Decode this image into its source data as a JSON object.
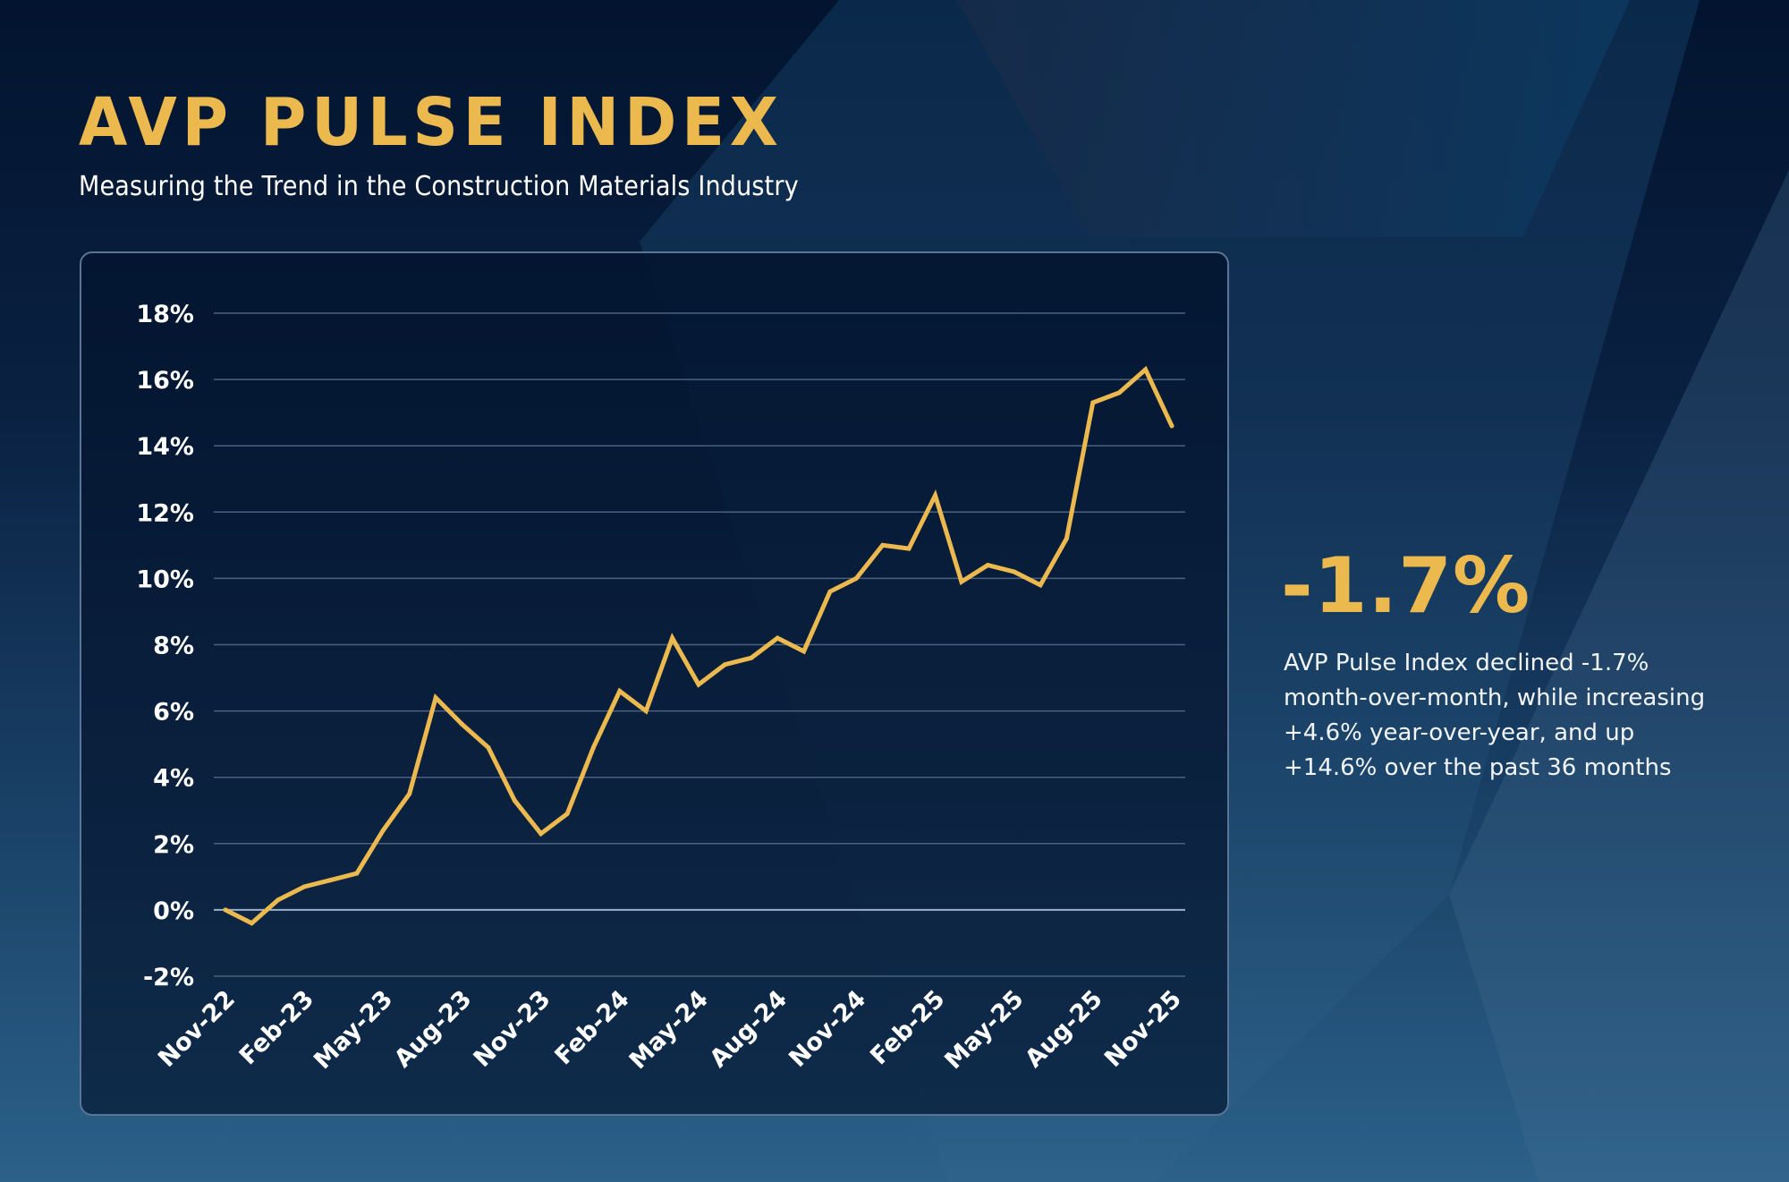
{
  "header": {
    "title": "AVP PULSE INDEX",
    "subtitle": "Measuring the Trend in the Construction Materials Industry"
  },
  "summary": {
    "headline_value": "-1.7%",
    "description_lines": [
      "AVP Pulse Index declined -1.7%",
      "month-over-month, while increasing",
      "+4.6% year-over-year, and up",
      "+14.6% over the past 36 months"
    ]
  },
  "colors": {
    "accent": "#ecb94f",
    "line": "#ecb94f",
    "text": "#ffffff",
    "gridline": "#4a6280",
    "zero_line": "#9fb2c8",
    "card_border": "#5a7596"
  },
  "chart_data": {
    "type": "line",
    "title": "AVP PULSE INDEX",
    "xlabel": "",
    "ylabel": "",
    "ylim": [
      -2,
      18
    ],
    "yticks": [
      -2,
      0,
      2,
      4,
      6,
      8,
      10,
      12,
      14,
      16,
      18
    ],
    "ytick_labels": [
      "-2%",
      "0%",
      "2%",
      "4%",
      "6%",
      "8%",
      "10%",
      "12%",
      "14%",
      "16%",
      "18%"
    ],
    "grid": true,
    "legend": "none",
    "x": [
      "Nov-22",
      "Dec-22",
      "Jan-23",
      "Feb-23",
      "Mar-23",
      "Apr-23",
      "May-23",
      "Jun-23",
      "Jul-23",
      "Aug-23",
      "Sep-23",
      "Oct-23",
      "Nov-23",
      "Dec-23",
      "Jan-24",
      "Feb-24",
      "Mar-24",
      "Apr-24",
      "May-24",
      "Jun-24",
      "Jul-24",
      "Aug-24",
      "Sep-24",
      "Oct-24",
      "Nov-24",
      "Dec-24",
      "Jan-25",
      "Feb-25",
      "Mar-25",
      "Apr-25",
      "May-25",
      "Jun-25",
      "Jul-25",
      "Aug-25",
      "Sep-25",
      "Oct-25",
      "Nov-25"
    ],
    "xtick_labels": [
      "Nov-22",
      "Feb-23",
      "May-23",
      "Aug-23",
      "Nov-23",
      "Feb-24",
      "May-24",
      "Aug-24",
      "Nov-24",
      "Feb-25",
      "May-25",
      "Aug-25",
      "Nov-25"
    ],
    "xtick_every": 3,
    "series": [
      {
        "name": "AVP Pulse Index",
        "unit": "%",
        "values": [
          0.0,
          -0.4,
          0.3,
          0.7,
          0.9,
          1.1,
          2.4,
          3.5,
          6.4,
          5.6,
          4.9,
          3.3,
          2.3,
          2.9,
          4.9,
          6.6,
          6.0,
          8.2,
          6.8,
          7.4,
          7.6,
          8.2,
          7.8,
          9.6,
          10.0,
          11.0,
          10.9,
          12.5,
          9.9,
          10.4,
          10.2,
          9.8,
          11.2,
          15.3,
          15.6,
          16.3,
          14.6
        ]
      }
    ]
  }
}
